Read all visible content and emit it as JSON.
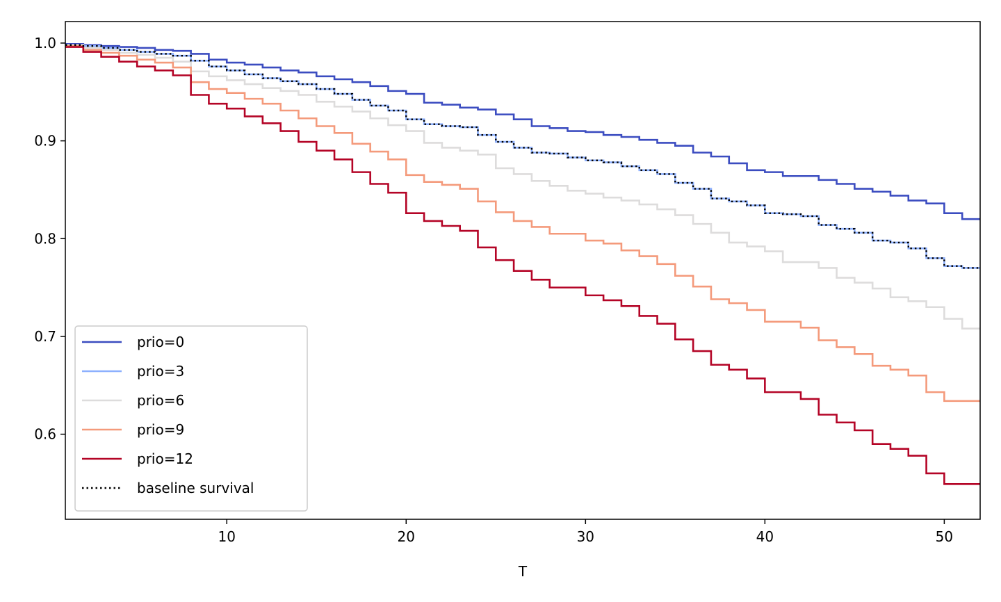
{
  "chart_data": {
    "type": "line",
    "step": true,
    "title": "",
    "xlabel": "T",
    "ylabel": "",
    "xlim": [
      1,
      52
    ],
    "ylim": [
      0.513,
      1.022
    ],
    "xticks": [
      10,
      20,
      30,
      40,
      50
    ],
    "xtick_labels": [
      "10",
      "20",
      "30",
      "40",
      "50"
    ],
    "yticks": [
      0.6,
      0.7,
      0.8,
      0.9,
      1.0
    ],
    "ytick_labels": [
      "0.6",
      "0.7",
      "0.8",
      "0.9",
      "1.0"
    ],
    "grid": false,
    "legend_position": "lower-left",
    "series": [
      {
        "name": "prio=0",
        "color": "#3b4cc0",
        "dash": "solid",
        "x": [
          1,
          2,
          3,
          4,
          5,
          6,
          7,
          8,
          9,
          10,
          11,
          12,
          13,
          14,
          15,
          16,
          17,
          18,
          19,
          20,
          21,
          22,
          23,
          24,
          25,
          26,
          27,
          28,
          29,
          30,
          31,
          32,
          33,
          34,
          35,
          36,
          37,
          38,
          39,
          40,
          41,
          42,
          43,
          44,
          45,
          46,
          47,
          48,
          49,
          50,
          51,
          52
        ],
        "y": [
          0.999,
          0.998,
          0.997,
          0.996,
          0.995,
          0.993,
          0.992,
          0.989,
          0.983,
          0.98,
          0.978,
          0.975,
          0.972,
          0.97,
          0.966,
          0.963,
          0.96,
          0.956,
          0.951,
          0.948,
          0.939,
          0.937,
          0.934,
          0.932,
          0.927,
          0.922,
          0.915,
          0.913,
          0.91,
          0.909,
          0.906,
          0.904,
          0.901,
          0.898,
          0.895,
          0.888,
          0.884,
          0.877,
          0.87,
          0.868,
          0.864,
          0.864,
          0.86,
          0.856,
          0.851,
          0.848,
          0.844,
          0.839,
          0.836,
          0.826,
          0.82,
          0.82
        ]
      },
      {
        "name": "prio=3",
        "color": "#8db0fe",
        "dash": "solid",
        "x": [
          1,
          2,
          3,
          4,
          5,
          6,
          7,
          8,
          9,
          10,
          11,
          12,
          13,
          14,
          15,
          16,
          17,
          18,
          19,
          20,
          21,
          22,
          23,
          24,
          25,
          26,
          27,
          28,
          29,
          30,
          31,
          32,
          33,
          34,
          35,
          36,
          37,
          38,
          39,
          40,
          41,
          42,
          43,
          44,
          45,
          46,
          47,
          48,
          49,
          50,
          51,
          52
        ],
        "y": [
          0.998,
          0.997,
          0.995,
          0.993,
          0.991,
          0.989,
          0.987,
          0.982,
          0.976,
          0.972,
          0.968,
          0.964,
          0.961,
          0.958,
          0.953,
          0.948,
          0.942,
          0.936,
          0.931,
          0.922,
          0.917,
          0.915,
          0.914,
          0.906,
          0.899,
          0.893,
          0.888,
          0.887,
          0.883,
          0.88,
          0.878,
          0.874,
          0.87,
          0.866,
          0.857,
          0.851,
          0.841,
          0.838,
          0.834,
          0.826,
          0.825,
          0.823,
          0.814,
          0.81,
          0.806,
          0.798,
          0.796,
          0.79,
          0.78,
          0.772,
          0.77,
          0.77
        ]
      },
      {
        "name": "prio=6",
        "color": "#dddcdc",
        "dash": "solid",
        "x": [
          1,
          2,
          3,
          4,
          5,
          6,
          7,
          8,
          9,
          10,
          11,
          12,
          13,
          14,
          15,
          16,
          17,
          18,
          19,
          20,
          21,
          22,
          23,
          24,
          25,
          26,
          27,
          28,
          29,
          30,
          31,
          32,
          33,
          34,
          35,
          36,
          37,
          38,
          39,
          40,
          41,
          42,
          43,
          44,
          45,
          46,
          47,
          48,
          49,
          50,
          51,
          52
        ],
        "y": [
          0.998,
          0.995,
          0.993,
          0.99,
          0.988,
          0.985,
          0.981,
          0.971,
          0.966,
          0.962,
          0.958,
          0.954,
          0.951,
          0.947,
          0.94,
          0.935,
          0.93,
          0.923,
          0.916,
          0.91,
          0.898,
          0.893,
          0.89,
          0.886,
          0.872,
          0.866,
          0.859,
          0.854,
          0.849,
          0.846,
          0.842,
          0.839,
          0.835,
          0.83,
          0.824,
          0.815,
          0.806,
          0.796,
          0.792,
          0.787,
          0.776,
          0.776,
          0.77,
          0.76,
          0.755,
          0.749,
          0.74,
          0.736,
          0.73,
          0.718,
          0.708,
          0.708
        ]
      },
      {
        "name": "prio=9",
        "color": "#f49a7b",
        "dash": "solid",
        "x": [
          1,
          2,
          3,
          4,
          5,
          6,
          7,
          8,
          9,
          10,
          11,
          12,
          13,
          14,
          15,
          16,
          17,
          18,
          19,
          20,
          21,
          22,
          23,
          24,
          25,
          26,
          27,
          28,
          29,
          30,
          31,
          32,
          33,
          34,
          35,
          36,
          37,
          38,
          39,
          40,
          41,
          42,
          43,
          44,
          45,
          46,
          47,
          48,
          49,
          50,
          51,
          52
        ],
        "y": [
          0.997,
          0.993,
          0.99,
          0.987,
          0.983,
          0.98,
          0.975,
          0.96,
          0.953,
          0.949,
          0.943,
          0.938,
          0.931,
          0.923,
          0.915,
          0.908,
          0.897,
          0.889,
          0.881,
          0.865,
          0.858,
          0.855,
          0.851,
          0.838,
          0.827,
          0.818,
          0.812,
          0.805,
          0.805,
          0.798,
          0.795,
          0.788,
          0.782,
          0.774,
          0.762,
          0.751,
          0.738,
          0.734,
          0.727,
          0.715,
          0.715,
          0.709,
          0.696,
          0.689,
          0.682,
          0.67,
          0.666,
          0.66,
          0.643,
          0.634,
          0.634,
          0.634
        ]
      },
      {
        "name": "prio=12",
        "color": "#b40426",
        "dash": "solid",
        "x": [
          1,
          2,
          3,
          4,
          5,
          6,
          7,
          8,
          9,
          10,
          11,
          12,
          13,
          14,
          15,
          16,
          17,
          18,
          19,
          20,
          21,
          22,
          23,
          24,
          25,
          26,
          27,
          28,
          29,
          30,
          31,
          32,
          33,
          34,
          35,
          36,
          37,
          38,
          39,
          40,
          41,
          42,
          43,
          44,
          45,
          46,
          47,
          48,
          49,
          50,
          51,
          52
        ],
        "y": [
          0.996,
          0.991,
          0.986,
          0.981,
          0.976,
          0.972,
          0.967,
          0.947,
          0.938,
          0.933,
          0.925,
          0.918,
          0.91,
          0.899,
          0.89,
          0.881,
          0.868,
          0.856,
          0.847,
          0.826,
          0.818,
          0.813,
          0.808,
          0.791,
          0.778,
          0.767,
          0.758,
          0.75,
          0.75,
          0.742,
          0.737,
          0.731,
          0.721,
          0.713,
          0.697,
          0.685,
          0.671,
          0.666,
          0.657,
          0.643,
          0.643,
          0.636,
          0.62,
          0.612,
          0.604,
          0.59,
          0.585,
          0.578,
          0.56,
          0.549,
          0.549,
          0.549
        ]
      },
      {
        "name": "baseline survival",
        "color": "#000000",
        "dash": "dotted",
        "x": [
          1,
          2,
          3,
          4,
          5,
          6,
          7,
          8,
          9,
          10,
          11,
          12,
          13,
          14,
          15,
          16,
          17,
          18,
          19,
          20,
          21,
          22,
          23,
          24,
          25,
          26,
          27,
          28,
          29,
          30,
          31,
          32,
          33,
          34,
          35,
          36,
          37,
          38,
          39,
          40,
          41,
          42,
          43,
          44,
          45,
          46,
          47,
          48,
          49,
          50,
          51,
          52
        ],
        "y": [
          0.998,
          0.997,
          0.995,
          0.993,
          0.991,
          0.989,
          0.987,
          0.982,
          0.976,
          0.972,
          0.968,
          0.964,
          0.961,
          0.958,
          0.953,
          0.948,
          0.942,
          0.936,
          0.931,
          0.922,
          0.917,
          0.915,
          0.914,
          0.906,
          0.899,
          0.893,
          0.888,
          0.887,
          0.883,
          0.88,
          0.878,
          0.874,
          0.87,
          0.866,
          0.857,
          0.851,
          0.841,
          0.838,
          0.834,
          0.826,
          0.825,
          0.823,
          0.814,
          0.81,
          0.806,
          0.798,
          0.796,
          0.79,
          0.78,
          0.772,
          0.77,
          0.77
        ]
      }
    ]
  }
}
